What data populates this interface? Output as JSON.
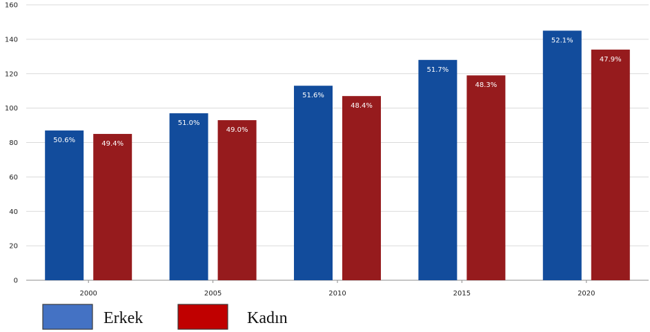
{
  "chart_data": {
    "type": "bar",
    "categories": [
      "2000",
      "2005",
      "2010",
      "2015",
      "2020"
    ],
    "series": [
      {
        "name": "Erkek",
        "color": "#124c9c",
        "values": [
          87,
          97,
          113,
          128,
          145
        ],
        "labels": [
          "50.6%",
          "51.0%",
          "51.6%",
          "51.7%",
          "52.1%"
        ]
      },
      {
        "name": "Kadın",
        "color": "#961b1d",
        "values": [
          85,
          93,
          107,
          119,
          134
        ],
        "labels": [
          "49.4%",
          "49.0%",
          "48.4%",
          "48.3%",
          "47.9%"
        ]
      }
    ],
    "yticks": [
      0,
      20,
      40,
      60,
      80,
      100,
      120,
      140,
      160
    ],
    "ylim": [
      0,
      160
    ],
    "grid": true,
    "legend_position": "bottom-left",
    "legend_colors": [
      "#4472c4",
      "#c00000"
    ],
    "title": "",
    "xlabel": "",
    "ylabel": ""
  }
}
